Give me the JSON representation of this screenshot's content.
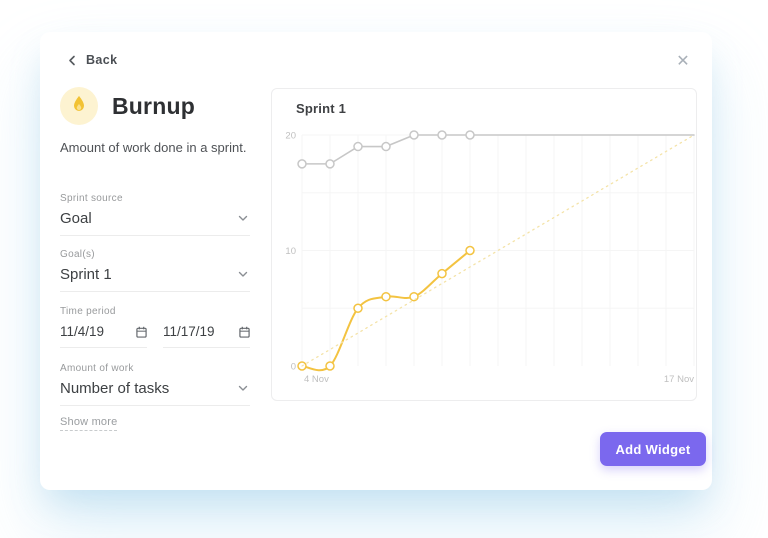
{
  "modal": {
    "back_label": "Back",
    "close_glyph": "✕"
  },
  "widget": {
    "title": "Burnup",
    "description": "Amount of work done in a sprint.",
    "icon": "flame-icon",
    "icon_color": "#f2c233",
    "icon_bg": "#fdf3d1"
  },
  "form": {
    "fields": [
      {
        "label": "Sprint source",
        "value": "Goal",
        "type": "select"
      },
      {
        "label": "Goal(s)",
        "value": "Sprint 1",
        "type": "select"
      },
      {
        "label": "Time period",
        "type": "daterange",
        "start": "11/4/19",
        "end": "11/17/19"
      },
      {
        "label": "Amount of work",
        "value": "Number of tasks",
        "type": "select"
      }
    ],
    "show_more_label": "Show more"
  },
  "footer": {
    "add_widget_label": "Add Widget",
    "button_color": "#7b68ee"
  },
  "chart_data": {
    "type": "line",
    "title": "Sprint 1",
    "x_axis": {
      "start_label": "4 Nov",
      "end_label": "17 Nov",
      "total_days": 14
    },
    "y_axis": {
      "min": 0,
      "max": 20,
      "ticks": [
        0,
        10,
        20
      ]
    },
    "grid": true,
    "series": [
      {
        "name": "total-scope",
        "color": "#c7c7c7",
        "width": 1.6,
        "smooth": false,
        "markers": 7,
        "x": [
          0,
          1,
          2,
          3,
          4,
          5,
          6,
          14
        ],
        "y": [
          17.5,
          17.5,
          19,
          19,
          20,
          20,
          20,
          20
        ]
      },
      {
        "name": "completed-tasks",
        "color": "#f3c341",
        "width": 2,
        "smooth": true,
        "markers": 7,
        "x": [
          0,
          1,
          2,
          3,
          4,
          5,
          6
        ],
        "y": [
          0,
          0,
          5,
          6,
          6,
          8,
          10
        ]
      },
      {
        "name": "ideal-guideline",
        "color": "#f4e3a8",
        "width": 1.3,
        "dotted": true,
        "markers": 0,
        "x": [
          0,
          14
        ],
        "y": [
          0,
          20
        ]
      }
    ]
  }
}
